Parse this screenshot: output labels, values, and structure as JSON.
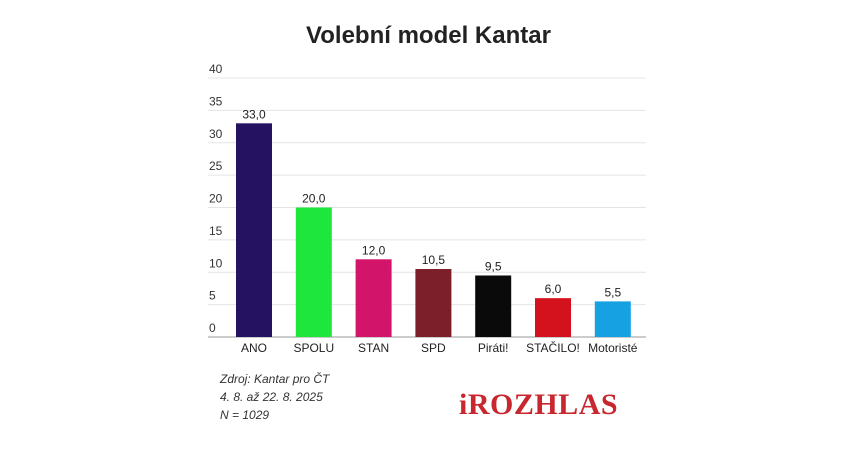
{
  "chart_data": {
    "type": "bar",
    "title": "Volební model Kantar",
    "categories": [
      "ANO",
      "SPOLU",
      "STAN",
      "SPD",
      "Piráti!",
      "STAČILO!",
      "Motoristé"
    ],
    "values": [
      33.0,
      20.0,
      12.0,
      10.5,
      9.5,
      6.0,
      5.5
    ],
    "value_labels": [
      "33,0",
      "20,0",
      "12,0",
      "10,5",
      "9,5",
      "6,0",
      "5,5"
    ],
    "colors": [
      "#251260",
      "#1ee63c",
      "#d2156a",
      "#7d1f2a",
      "#0a0a0a",
      "#d4121e",
      "#15a1e2"
    ],
    "ylim": [
      0,
      40
    ],
    "yticks": [
      0,
      5,
      10,
      15,
      20,
      25,
      30,
      35,
      40
    ],
    "xlabel": "",
    "ylabel": "",
    "grid": true
  },
  "source": {
    "line1": "Zdroj: Kantar pro ČT",
    "line2": "4. 8. až 22. 8. 2025",
    "line3": "N = 1029"
  },
  "logo": "iROZHLAS"
}
